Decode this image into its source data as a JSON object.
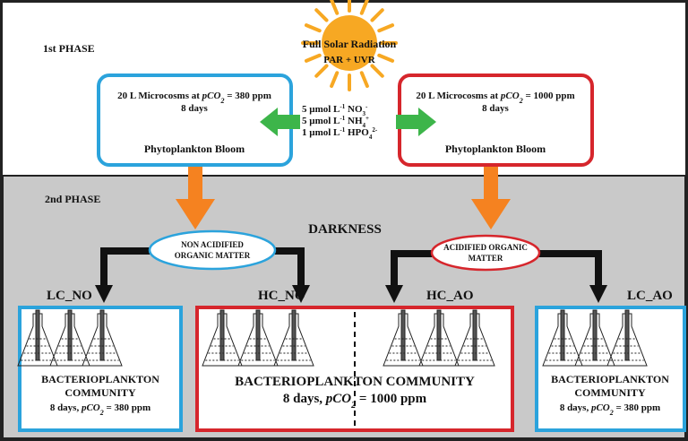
{
  "phase1": "1st PHASE",
  "sun": {
    "title": "Full Solar Radiation",
    "subtitle": "PAR + UVR"
  },
  "microcosm_low": {
    "text": "20 L Microcosms at ",
    "pco": "pCO",
    "sub": "2",
    "level": " = 380 ppm",
    "duration": "8 days",
    "label": "Phytoplankton Bloom"
  },
  "microcosm_high": {
    "text": "20 L Microcosms at ",
    "pco": "pCO",
    "sub": "2",
    "level": " = 1000 ppm",
    "duration": "8 days",
    "label": "Phytoplankton Bloom"
  },
  "nutrients": [
    {
      "amount": "5 µmol L",
      "exp": "-1",
      "name": " NO",
      "sub": "3",
      "charge": "-"
    },
    {
      "amount": "5 µmol L",
      "exp": "-1",
      "name": " NH",
      "sub": "4",
      "charge": "+"
    },
    {
      "amount": "1 µmol L",
      "exp": "-1",
      "name": " HPO",
      "sub": "4",
      "charge": "2-"
    }
  ],
  "phase2": "2nd PHASE",
  "darkness": "DARKNESS",
  "non_acidified": [
    "NON ACIDIFIED",
    "ORGANIC MATTER"
  ],
  "acidified": [
    "ACIDIFIED ORGANIC",
    "MATTER"
  ],
  "treatments": [
    "LC_NO",
    "HC_NO",
    "HC_AO",
    "LC_AO"
  ],
  "box_left": {
    "line1": "BACTERIOPLANKTON",
    "line2": "COMMUNITY",
    "days": "8 days, ",
    "pco": "pCO",
    "sub": "2",
    "level": " = 380 ppm"
  },
  "box_middle": {
    "line1": "BACTERIOPLANKTON COMMUNITY",
    "days": "8 days, ",
    "pco": "pCO",
    "sub": "2",
    "level": " = 1000 ppm"
  },
  "box_right": {
    "line1": "BACTERIOPLANKTON",
    "line2": "COMMUNITY",
    "days": "8 days, ",
    "pco": "pCO",
    "sub": "2",
    "level": " = 380 ppm"
  }
}
